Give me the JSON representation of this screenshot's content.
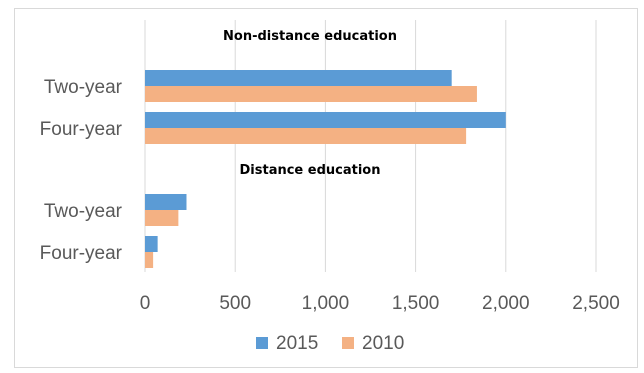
{
  "chart_data": {
    "type": "bar",
    "orientation": "horizontal",
    "groups": [
      {
        "title": "Non-distance education",
        "categories": [
          "Two-year",
          "Four-year"
        ],
        "series": [
          {
            "name": "2015",
            "values": [
              1700,
              2000
            ]
          },
          {
            "name": "2010",
            "values": [
              1840,
              1780
            ]
          }
        ]
      },
      {
        "title": "Distance education",
        "categories": [
          "Two-year",
          "Four-year"
        ],
        "series": [
          {
            "name": "2015",
            "values": [
              230,
              70
            ]
          },
          {
            "name": "2010",
            "values": [
              185,
              45
            ]
          }
        ]
      }
    ],
    "xlim": [
      0,
      2500
    ],
    "xticks": [
      0,
      500,
      1000,
      1500,
      2000,
      2500
    ],
    "xtick_labels": [
      "0",
      "500",
      "1,000",
      "1,500",
      "2,000",
      "2,500"
    ],
    "grid": true,
    "legend": {
      "position": "bottom",
      "entries": [
        "2015",
        "2010"
      ]
    },
    "colors": {
      "2015": "#5b9bd5",
      "2010": "#f4b183"
    }
  }
}
